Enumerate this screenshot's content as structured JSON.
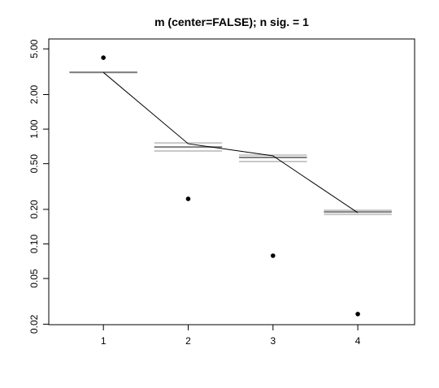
{
  "chart_data": {
    "type": "line",
    "title": "m (center=FALSE); n sig. = 1",
    "x": [
      1,
      2,
      3,
      4
    ],
    "xlim": [
      0.356,
      4.67
    ],
    "xticks": [
      1,
      2,
      3,
      4
    ],
    "log_y": true,
    "ylim": [
      0.0198,
      6.1
    ],
    "yticks": [
      {
        "value": 0.02,
        "label": "0.02"
      },
      {
        "value": 0.05,
        "label": "0.05"
      },
      {
        "value": 0.1,
        "label": "0.10"
      },
      {
        "value": 0.2,
        "label": "0.20"
      },
      {
        "value": 0.5,
        "label": "0.50"
      },
      {
        "value": 1,
        "label": "1.00"
      },
      {
        "value": 2,
        "label": "2.00"
      },
      {
        "value": 5,
        "label": "5.00"
      }
    ],
    "series": [
      {
        "style": "line",
        "color": "#000000",
        "values": [
          3.12,
          0.746,
          0.585,
          0.187
        ]
      },
      {
        "style": "point",
        "color": "#000000",
        "values": [
          4.19,
          0.247,
          0.079,
          0.0245
        ]
      },
      {
        "style": "bar",
        "color": "#c8c8c8",
        "values": [
          3.12,
          0.758,
          0.594,
          0.196
        ]
      },
      {
        "style": "bar",
        "color": "#c8c8c8",
        "values": [
          3.12,
          0.645,
          0.522,
          0.181
        ]
      },
      {
        "style": "bar",
        "color": "#808080",
        "values": [
          3.12,
          0.699,
          0.566,
          0.19
        ]
      }
    ]
  }
}
